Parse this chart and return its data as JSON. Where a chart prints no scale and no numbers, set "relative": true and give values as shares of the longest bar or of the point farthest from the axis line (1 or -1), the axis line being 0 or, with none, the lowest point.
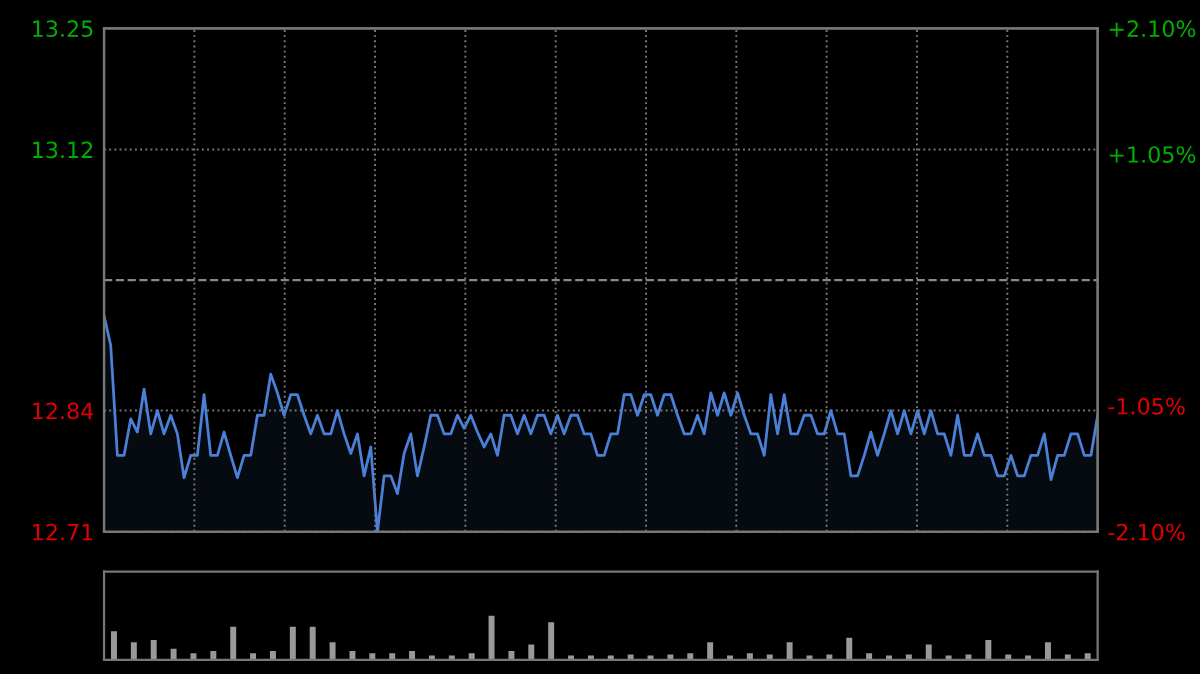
{
  "chart_data": [
    {
      "type": "area",
      "categories": [
        null,
        null,
        null,
        null,
        null,
        null,
        null,
        null,
        null,
        null,
        null,
        null,
        null,
        null,
        null,
        null,
        null,
        null,
        null,
        null,
        null,
        null,
        null,
        null,
        null,
        null,
        null,
        null,
        null,
        null,
        null,
        null,
        null,
        null,
        null,
        null,
        null,
        null,
        null,
        null,
        null,
        null,
        null,
        null,
        null,
        null,
        null,
        null,
        null,
        null,
        null,
        null,
        null,
        null,
        null,
        null,
        null,
        null,
        null,
        null,
        null,
        null,
        null,
        null,
        null,
        null,
        null,
        null,
        null,
        null,
        null,
        null,
        null,
        null,
        null,
        null,
        null,
        null,
        null,
        null,
        null,
        null,
        null,
        null,
        null,
        null,
        null,
        null,
        null,
        null,
        null,
        null,
        null,
        null,
        null,
        null,
        null,
        null,
        null,
        null,
        null,
        null,
        null,
        null,
        null,
        null,
        null,
        null,
        null,
        null,
        null,
        null,
        null,
        null,
        null,
        null,
        null,
        null,
        null,
        null,
        null,
        null,
        null,
        null,
        null,
        null,
        null,
        null,
        null,
        null,
        null,
        null,
        null,
        null,
        null,
        null,
        null,
        null,
        null,
        null,
        null,
        null,
        null,
        null,
        null,
        null,
        null,
        null,
        null,
        null
      ],
      "series": [
        {
          "color": "#4a80d8",
          "values": [
            12.942,
            12.91,
            12.792,
            12.792,
            12.831,
            12.817,
            12.863,
            12.815,
            12.84,
            12.815,
            12.835,
            12.815,
            12.768,
            12.792,
            12.792,
            12.857,
            12.792,
            12.792,
            12.817,
            12.792,
            12.768,
            12.792,
            12.792,
            12.835,
            12.835,
            12.879,
            12.859,
            12.835,
            12.857,
            12.857,
            12.835,
            12.815,
            12.835,
            12.815,
            12.815,
            12.84,
            12.815,
            12.794,
            12.815,
            12.77,
            12.801,
            12.71,
            12.77,
            12.77,
            12.751,
            12.794,
            12.815,
            12.77,
            12.801,
            12.835,
            12.835,
            12.815,
            12.815,
            12.835,
            12.821,
            12.835,
            12.817,
            12.801,
            12.815,
            12.792,
            12.835,
            12.835,
            12.815,
            12.835,
            12.815,
            12.835,
            12.835,
            12.815,
            12.835,
            12.815,
            12.835,
            12.835,
            12.815,
            12.815,
            12.792,
            12.792,
            12.815,
            12.815,
            12.857,
            12.857,
            12.835,
            12.857,
            12.857,
            12.835,
            12.857,
            12.857,
            12.835,
            12.815,
            12.815,
            12.835,
            12.815,
            12.859,
            12.835,
            12.859,
            12.835,
            12.859,
            12.835,
            12.815,
            12.815,
            12.792,
            12.857,
            12.815,
            12.857,
            12.815,
            12.815,
            12.835,
            12.835,
            12.815,
            12.815,
            12.84,
            12.815,
            12.815,
            12.77,
            12.77,
            12.792,
            12.817,
            12.792,
            12.815,
            12.84,
            12.815,
            12.84,
            12.815,
            12.84,
            12.815,
            12.84,
            12.815,
            12.815,
            12.792,
            12.835,
            12.792,
            12.792,
            12.815,
            12.792,
            12.792,
            12.77,
            12.77,
            12.792,
            12.77,
            12.77,
            12.792,
            12.792,
            12.815,
            12.766,
            12.792,
            12.792,
            12.815,
            12.815,
            12.792,
            12.792,
            12.835
          ]
        }
      ],
      "ylim": [
        12.71,
        13.25
      ],
      "yticks": [
        13.25,
        13.12,
        12.84,
        12.71
      ],
      "y2lim": [
        -2.1,
        2.1
      ],
      "y2ticks": [
        {
          "value": 2.1,
          "label": "+2.10%"
        },
        {
          "value": 1.05,
          "label": "+1.05%"
        },
        {
          "value": -1.05,
          "label": "-1.05%"
        },
        {
          "value": -2.1,
          "label": "-2.10%"
        }
      ],
      "ref_lines": [
        {
          "axis": "y",
          "value": 12.98,
          "color": "#888888",
          "line_style": "dashed"
        }
      ],
      "grid": true,
      "tick_labels": "y",
      "legend": false
    },
    {
      "type": "bar",
      "relative": true,
      "color": "#999999",
      "categories": [
        null,
        null,
        null,
        null,
        null,
        null,
        null,
        null,
        null,
        null,
        null,
        null,
        null,
        null,
        null,
        null,
        null,
        null,
        null,
        null,
        null,
        null,
        null,
        null,
        null,
        null,
        null,
        null,
        null,
        null,
        null,
        null,
        null,
        null,
        null,
        null,
        null,
        null,
        null,
        null,
        null,
        null,
        null,
        null,
        null,
        null,
        null,
        null,
        null,
        null
      ],
      "values": [
        0.65,
        0.4,
        0.45,
        0.25,
        0.15,
        0.2,
        0.75,
        0.15,
        0.2,
        0.75,
        0.75,
        0.4,
        0.2,
        0.15,
        0.15,
        0.2,
        0.1,
        0.1,
        0.15,
        1,
        0.2,
        0.35,
        0.85,
        0.1,
        0.1,
        0.1,
        0.12,
        0.1,
        0.12,
        0.15,
        0.4,
        0.1,
        0.15,
        0.12,
        0.4,
        0.1,
        0.12,
        0.5,
        0.15,
        0.1,
        0.12,
        0.35,
        0.1,
        0.12,
        0.45,
        0.12,
        0.1,
        0.4,
        0.12,
        0.15
      ],
      "tick_labels": false
    }
  ]
}
